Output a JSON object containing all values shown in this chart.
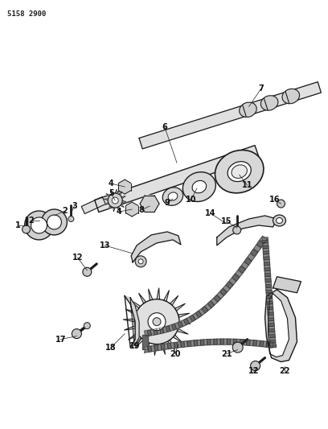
{
  "part_number": "5158 2900",
  "bg_color": "#ffffff",
  "line_color": "#1a1a1a",
  "fig_width": 4.08,
  "fig_height": 5.33,
  "dpi": 100,
  "shaft_fc": "#e8e8e8",
  "part_fc": "#d8d8d8",
  "chain_dark": "#555555",
  "chain_light": "#aaaaaa"
}
